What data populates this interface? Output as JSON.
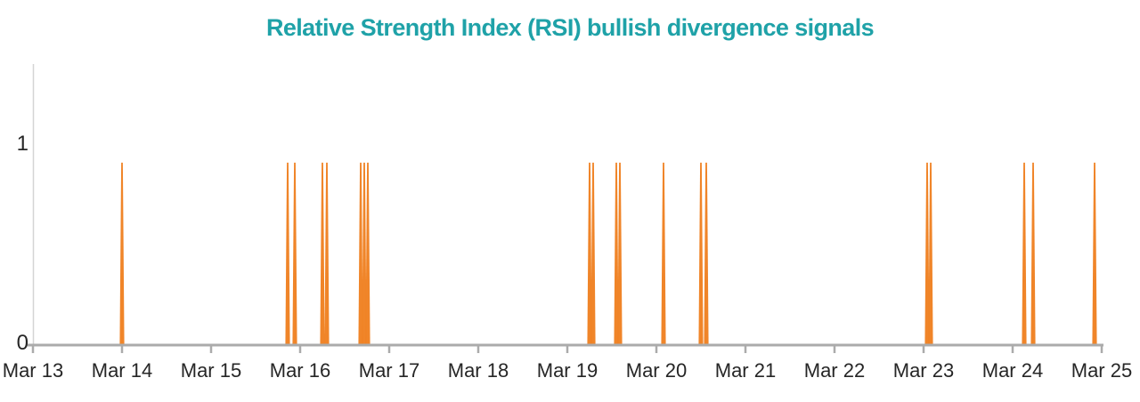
{
  "title": {
    "text": "Relative Strength Index (RSI) bullish divergence signals"
  },
  "chart_data": {
    "type": "line",
    "title": "Relative Strength Index (RSI) bullish divergence signals",
    "x_axis": {
      "tick_labels": [
        "Mar 13",
        "Mar 14",
        "Mar 15",
        "Mar 16",
        "Mar 17",
        "Mar 18",
        "Mar 19",
        "Mar 20",
        "Mar 21",
        "Mar 22",
        "Mar 23",
        "Mar 24",
        "Mar 25"
      ],
      "range_days_from_mar13": [
        0,
        12.03
      ]
    },
    "y_axis": {
      "tick_labels": [
        "0",
        "1"
      ],
      "tick_values": [
        0,
        1
      ],
      "range": [
        0,
        1.38
      ]
    },
    "grid": false,
    "legend": false,
    "series": [
      {
        "name": "RSI bullish divergence signal",
        "color": "#f08122",
        "baseline_value": 0,
        "spike_value": 0.9,
        "spikes_days_after_mar13": [
          1.0,
          2.86,
          2.94,
          3.25,
          3.3,
          3.68,
          3.72,
          3.76,
          6.25,
          6.29,
          6.55,
          6.59,
          7.08,
          7.5,
          7.56,
          10.04,
          10.08,
          11.13,
          11.23,
          11.92
        ]
      }
    ]
  },
  "colors": {
    "title": "#1fa2a8",
    "spike": "#f08122",
    "x_axis_line": "#ababab",
    "y_axis_line": "#d4d4d4",
    "tick_label": "#262626",
    "background": "#ffffff"
  }
}
